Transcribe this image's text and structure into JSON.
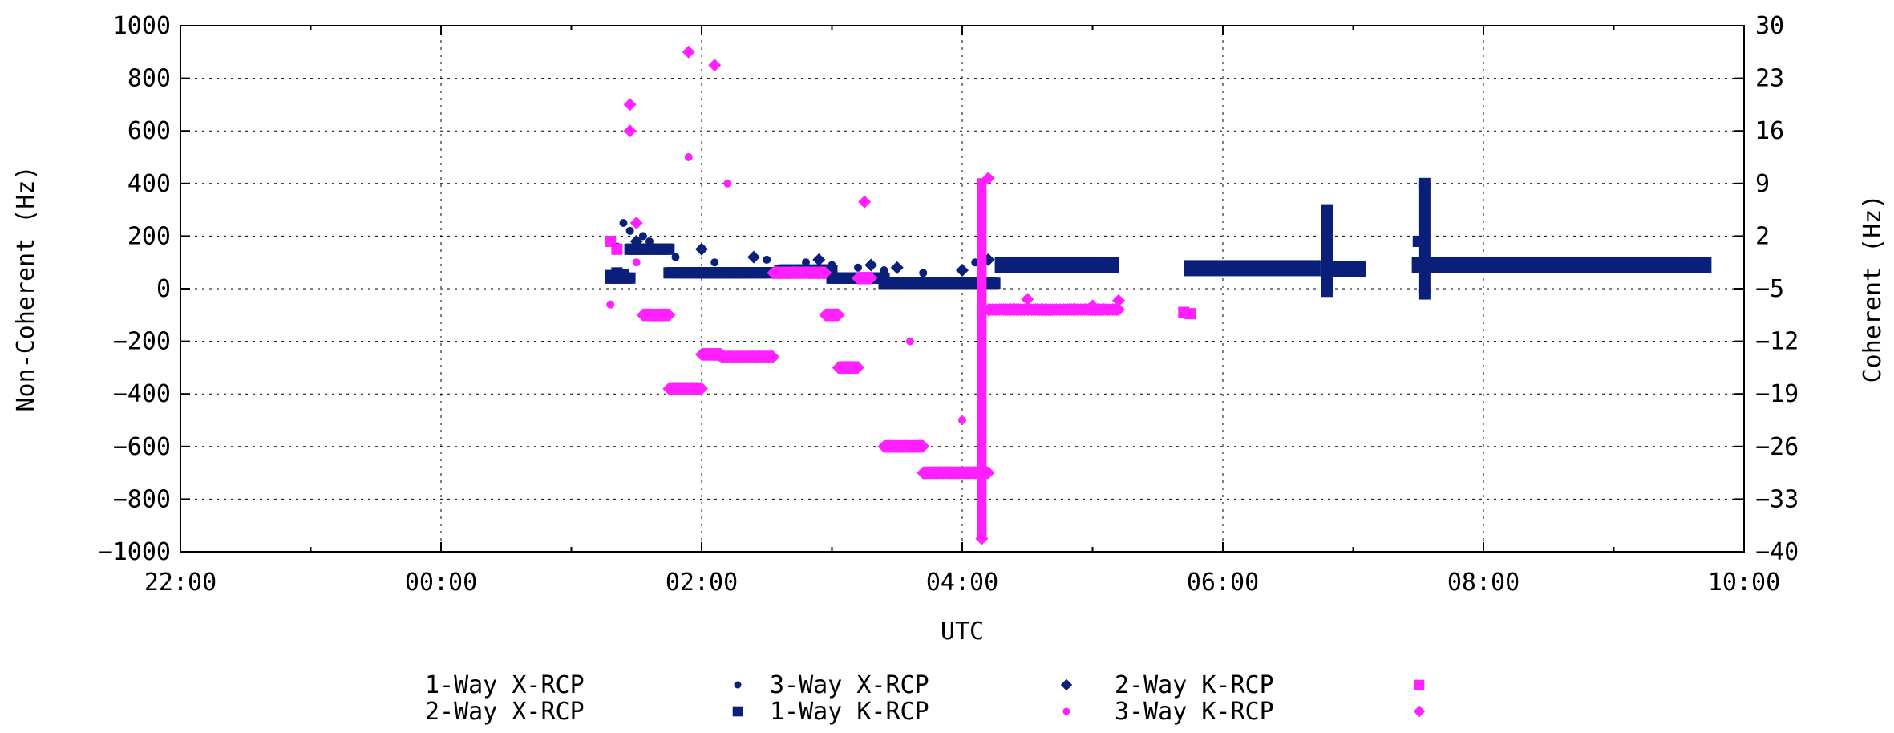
{
  "chart_data": {
    "type": "scatter",
    "title": "",
    "xlabel": "UTC",
    "ylabel_left": "Non-Coherent (Hz)",
    "ylabel_right": "Coherent (Hz)",
    "x_ticks": [
      "22:00",
      "00:00",
      "02:00",
      "04:00",
      "06:00",
      "08:00",
      "10:00"
    ],
    "x_range_hours": [
      -2,
      10
    ],
    "ylim_left": [
      -1000,
      1000
    ],
    "y_ticks_left": [
      -1000,
      -800,
      -600,
      -400,
      -200,
      0,
      200,
      400,
      600,
      800,
      1000
    ],
    "ylim_right": [
      -40,
      30
    ],
    "y_ticks_right": [
      -40,
      -33,
      -26,
      -19,
      -12,
      -5,
      2,
      9,
      16,
      23,
      30
    ],
    "grid": true,
    "legend_position": "bottom",
    "colors": {
      "navy": "#0a1f7a",
      "magenta": "#ff1fff"
    },
    "series": [
      {
        "name": "1-Way X-RCP",
        "marker": "small-circle",
        "color": "#0a1f7a",
        "points": [
          [
            1.35,
            160
          ],
          [
            1.4,
            250
          ],
          [
            1.45,
            220
          ],
          [
            1.55,
            200
          ],
          [
            1.6,
            180
          ],
          [
            1.7,
            150
          ],
          [
            1.8,
            120
          ],
          [
            2.1,
            100
          ],
          [
            2.5,
            110
          ],
          [
            2.8,
            100
          ],
          [
            3.0,
            90
          ],
          [
            3.2,
            80
          ],
          [
            3.4,
            70
          ],
          [
            3.7,
            60
          ],
          [
            4.1,
            100
          ]
        ]
      },
      {
        "name": "2-Way X-RCP",
        "marker": "square",
        "color": "#0a1f7a",
        "segments": [
          [
            4.25,
            5.2,
            90
          ],
          [
            5.7,
            6.75,
            78
          ],
          [
            6.75,
            7.1,
            75
          ],
          [
            7.45,
            9.75,
            90
          ]
        ],
        "points": [
          [
            1.3,
            50
          ],
          [
            1.35,
            60
          ],
          [
            1.4,
            55
          ],
          [
            6.8,
            300
          ],
          [
            6.8,
            -10
          ],
          [
            7.5,
            180
          ],
          [
            7.55,
            400
          ],
          [
            7.55,
            -20
          ]
        ]
      },
      {
        "name": "3-Way X-RCP",
        "marker": "diamond",
        "color": "#0a1f7a",
        "points": [
          [
            1.5,
            180
          ],
          [
            2.0,
            150
          ],
          [
            2.4,
            120
          ],
          [
            2.9,
            110
          ],
          [
            3.3,
            90
          ],
          [
            3.5,
            80
          ],
          [
            4.0,
            70
          ],
          [
            4.2,
            110
          ]
        ]
      },
      {
        "name": "1-Way K-RCP",
        "marker": "small-circle",
        "color": "#ff1fff",
        "points": [
          [
            1.3,
            -60
          ],
          [
            1.5,
            100
          ],
          [
            1.9,
            500
          ],
          [
            2.2,
            400
          ],
          [
            3.6,
            -200
          ],
          [
            4.0,
            -500
          ]
        ]
      },
      {
        "name": "2-Way K-RCP",
        "marker": "square",
        "color": "#ff1fff",
        "points": [
          [
            1.3,
            180
          ],
          [
            1.35,
            150
          ],
          [
            5.7,
            -90
          ],
          [
            5.75,
            -95
          ]
        ]
      },
      {
        "name": "3-Way K-RCP",
        "marker": "diamond",
        "color": "#ff1fff",
        "points": [
          [
            1.45,
            700
          ],
          [
            1.45,
            600
          ],
          [
            1.5,
            250
          ],
          [
            1.9,
            900
          ],
          [
            2.1,
            850
          ],
          [
            3.25,
            330
          ],
          [
            4.2,
            420
          ],
          [
            4.15,
            -950
          ],
          [
            4.5,
            -40
          ],
          [
            5.0,
            -65
          ],
          [
            5.2,
            -45
          ]
        ]
      }
    ]
  }
}
